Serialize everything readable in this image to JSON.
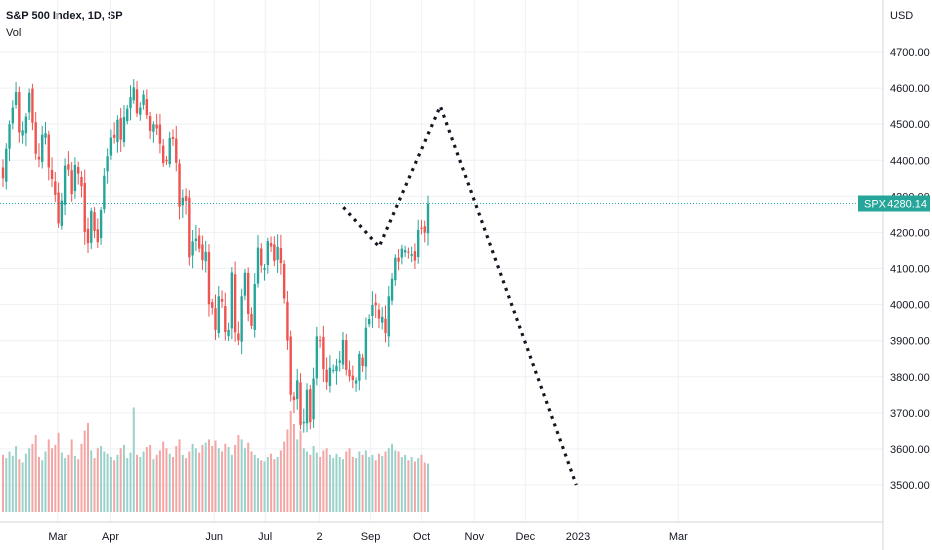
{
  "chart_data": {
    "type": "candlestick",
    "title": "S&P 500 Index, 1D, SP",
    "indicator": "Vol",
    "currency": "USD",
    "symbol": "SPX",
    "last_price": 4280.14,
    "last_price_label": "4280.14",
    "colors": {
      "up": "#26a69a",
      "down": "#ef5350",
      "vol_up": "#9ad2cb",
      "vol_down": "#f4a6a5",
      "price_tag": "#26a69a",
      "grid": "#eef0f3",
      "forecast": "#131722"
    },
    "y_axis": {
      "min": 3400,
      "max": 4850,
      "ticks": [
        3500,
        3600,
        3700,
        3800,
        3900,
        4000,
        4100,
        4200,
        4300,
        4400,
        4500,
        4600,
        4700
      ],
      "tick_labels": [
        "3500.00",
        "3600.00",
        "3700.00",
        "3800.00",
        "3900.00",
        "4000.00",
        "4100.00",
        "4200.00",
        "4300.00",
        "4400.00",
        "4500.00",
        "4600.00",
        "4700.00"
      ]
    },
    "x_axis": {
      "start_date": "2022-01-26",
      "end_date": "2023-03-31",
      "labels": [
        {
          "label": "Mar",
          "date": "2022-03-01"
        },
        {
          "label": "Apr",
          "date": "2022-04-01"
        },
        {
          "label": "Jun",
          "date": "2022-06-01"
        },
        {
          "label": "Jul",
          "date": "2022-07-01"
        },
        {
          "label": "2",
          "date": "2022-08-02"
        },
        {
          "label": "Sep",
          "date": "2022-09-01"
        },
        {
          "label": "Oct",
          "date": "2022-10-01"
        },
        {
          "label": "Nov",
          "date": "2022-11-01"
        },
        {
          "label": "Dec",
          "date": "2022-12-01"
        },
        {
          "label": "2023",
          "date": "2023-01-01"
        },
        {
          "label": "Mar",
          "date": "2023-03-01"
        }
      ]
    },
    "closes": [
      4350,
      4432,
      4500,
      4546,
      4589,
      4477,
      4483,
      4521,
      4587,
      4504,
      4418,
      4402,
      4471,
      4475,
      4380,
      4348,
      4304,
      4225,
      4288,
      4385,
      4374,
      4306,
      4387,
      4363,
      4328,
      4201,
      4170,
      4260,
      4204,
      4173,
      4262,
      4357,
      4411,
      4463,
      4462,
      4512,
      4457,
      4520,
      4543,
      4575,
      4602,
      4530,
      4546,
      4582,
      4525,
      4481,
      4500,
      4488,
      4446,
      4392,
      4397,
      4462,
      4459,
      4393,
      4271,
      4296,
      4287,
      4131,
      4175,
      4183,
      4155,
      4123,
      4146,
      4001,
      3991,
      3930,
      4023,
      4008,
      3924,
      3930,
      4089,
      3923,
      3901,
      4023,
      4088,
      3974,
      3941,
      4057,
      4158,
      4108,
      4101,
      4176,
      4161,
      4121,
      4160,
      4115,
      4017,
      3900,
      3750,
      3735,
      3790,
      3666,
      3675,
      3764,
      3674,
      3795,
      3912,
      3900,
      3821,
      3785,
      3825,
      3819,
      3831,
      3845,
      3902,
      3819,
      3801,
      3791,
      3790,
      3863,
      3830,
      3936,
      3960,
      3999,
      3998,
      3961,
      3966,
      3921,
      4023,
      4072,
      4130,
      4119,
      4155,
      4151,
      4145,
      4140,
      4122,
      4207,
      4210,
      4199,
      4280
    ],
    "volumes_pct": [
      0.52,
      0.49,
      0.55,
      0.51,
      0.6,
      0.48,
      0.45,
      0.53,
      0.58,
      0.62,
      0.7,
      0.5,
      0.47,
      0.55,
      0.66,
      0.58,
      0.61,
      0.72,
      0.54,
      0.49,
      0.52,
      0.66,
      0.51,
      0.48,
      0.62,
      0.74,
      0.81,
      0.56,
      0.49,
      0.58,
      0.6,
      0.55,
      0.53,
      0.5,
      0.47,
      0.52,
      0.58,
      0.61,
      0.49,
      0.54,
      0.95,
      0.52,
      0.5,
      0.55,
      0.59,
      0.61,
      0.48,
      0.52,
      0.56,
      0.64,
      0.58,
      0.53,
      0.5,
      0.6,
      0.66,
      0.52,
      0.49,
      0.55,
      0.62,
      0.58,
      0.54,
      0.61,
      0.63,
      0.66,
      0.6,
      0.65,
      0.58,
      0.55,
      0.62,
      0.59,
      0.52,
      0.61,
      0.7,
      0.66,
      0.58,
      0.63,
      0.55,
      0.52,
      0.49,
      0.47,
      0.46,
      0.5,
      0.53,
      0.48,
      0.5,
      0.56,
      0.64,
      0.75,
      0.92,
      0.8,
      0.66,
      0.74,
      0.58,
      0.55,
      0.52,
      0.6,
      0.54,
      0.5,
      0.56,
      0.58,
      0.52,
      0.49,
      0.53,
      0.5,
      0.48,
      0.55,
      0.58,
      0.5,
      0.49,
      0.55,
      0.52,
      0.56,
      0.5,
      0.52,
      0.47,
      0.53,
      0.51,
      0.55,
      0.58,
      0.62,
      0.56,
      0.55,
      0.5,
      0.52,
      0.47,
      0.5,
      0.46,
      0.49,
      0.52,
      0.45,
      0.44
    ],
    "forecast_path": [
      {
        "date": "2022-08-16",
        "value": 4270
      },
      {
        "date": "2022-09-06",
        "value": 4160
      },
      {
        "date": "2022-10-12",
        "value": 4550
      },
      {
        "date": "2022-11-07",
        "value": 4210
      },
      {
        "date": "2022-12-31",
        "value": 3500
      }
    ]
  }
}
